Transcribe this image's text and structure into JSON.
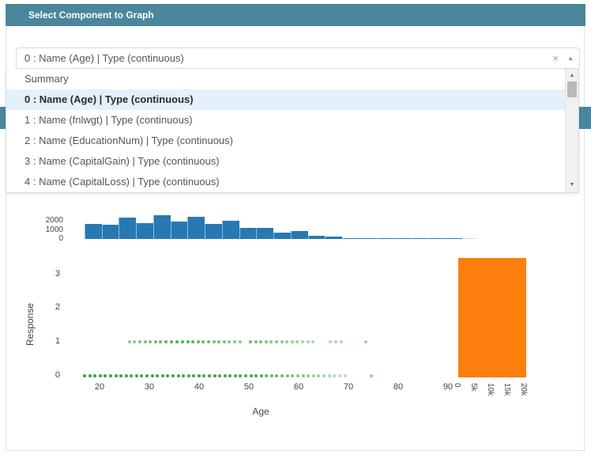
{
  "panel": {
    "title": "Select Component to Graph",
    "header_color": "#4a879c"
  },
  "combobox": {
    "value": "0 : Name (Age) | Type (continuous)"
  },
  "icons": {
    "clear": "×",
    "caret_up": "▲",
    "scroll_up": "▲",
    "scroll_down": "▼"
  },
  "dropdown": {
    "items": [
      {
        "label": "Summary",
        "selected": false
      },
      {
        "label": "0 : Name (Age) | Type (continuous)",
        "selected": true
      },
      {
        "label": "1 : Name (fnlwgt) | Type (continuous)",
        "selected": false
      },
      {
        "label": "2 : Name (EducationNum) | Type (continuous)",
        "selected": false
      },
      {
        "label": "3 : Name (CapitalGain) | Type (continuous)",
        "selected": false
      },
      {
        "label": "4 : Name (CapitalLoss) | Type (continuous)",
        "selected": false
      }
    ]
  },
  "chart_data": [
    {
      "type": "bar",
      "name": "age-histogram-top-marginal",
      "color": "#2878b4",
      "bin_start_age": 17,
      "bin_width_years": 3.45,
      "values": [
        1680,
        1560,
        2380,
        1770,
        2580,
        1910,
        2410,
        1630,
        2000,
        1190,
        1190,
        670,
        840,
        320,
        260,
        90,
        60,
        45,
        30,
        20,
        12,
        8
      ],
      "y_ticks": [
        0,
        1000,
        2000
      ],
      "ylim": [
        0,
        2800
      ]
    },
    {
      "type": "scatter",
      "name": "response-vs-age",
      "title": "",
      "xlabel": "Age",
      "ylabel": "Response",
      "x_ticks": [
        20,
        30,
        40,
        50,
        60,
        70,
        80,
        90
      ],
      "y_ticks": [
        0,
        1,
        2,
        3
      ],
      "xlim": [
        13.5,
        92
      ],
      "ylim": [
        -0.5,
        3.6
      ],
      "dot_color": "#2ca02c",
      "series": [
        {
          "name": "response-0-points",
          "response": 0,
          "runs": [
            {
              "age_from": 17.0,
              "age_to": 52.5,
              "step": 1.05,
              "alpha_from": 0.95,
              "alpha_to": 0.88
            },
            {
              "age_from": 53.5,
              "age_to": 69.3,
              "step": 1.05,
              "alpha_from": 0.78,
              "alpha_to": 0.32
            }
          ],
          "singles": [
            {
              "age": 74.6,
              "alpha": 0.5
            }
          ]
        },
        {
          "name": "response-1-points",
          "response": 1,
          "runs": [
            {
              "age_from": 26.0,
              "age_to": 34.4,
              "step": 1.05,
              "alpha_from": 0.55,
              "alpha_to": 0.8
            },
            {
              "age_from": 35.6,
              "age_to": 48.2,
              "step": 1.05,
              "alpha_from": 0.85,
              "alpha_to": 0.55
            },
            {
              "age_from": 50.3,
              "age_to": 62.9,
              "step": 1.05,
              "alpha_from": 0.7,
              "alpha_to": 0.38
            },
            {
              "age_from": 66.4,
              "age_to": 68.6,
              "step": 1.1,
              "alpha_from": 0.4,
              "alpha_to": 0.4
            }
          ],
          "singles": [
            {
              "age": 73.5,
              "alpha": 0.45
            }
          ]
        }
      ]
    },
    {
      "type": "bar",
      "name": "response-count-right-marginal",
      "orientation": "horizontal",
      "color": "#fd7f0e",
      "value": 20500,
      "x_tick_values": [
        0,
        5000,
        10000,
        15000,
        20000
      ],
      "x_tick_labels": [
        "0",
        "5k",
        "10k",
        "15k",
        "20k"
      ]
    }
  ]
}
